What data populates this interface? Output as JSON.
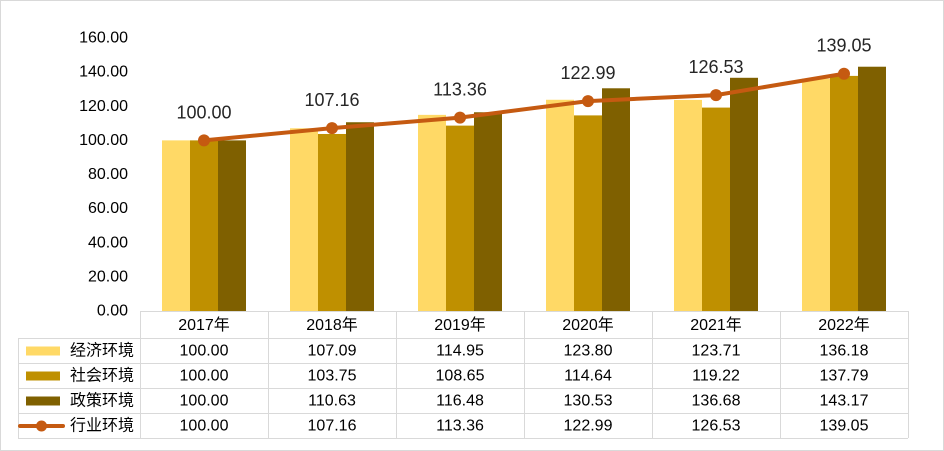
{
  "chart_data": {
    "type": "bar",
    "categories": [
      "2017年",
      "2018年",
      "2019年",
      "2020年",
      "2021年",
      "2022年"
    ],
    "series": [
      {
        "name": "经济环境",
        "type": "bar",
        "color": "#FFD966",
        "values": [
          100.0,
          107.09,
          114.95,
          123.8,
          123.71,
          136.18
        ]
      },
      {
        "name": "社会环境",
        "type": "bar",
        "color": "#BF9000",
        "values": [
          100.0,
          103.75,
          108.65,
          114.64,
          119.22,
          137.79
        ]
      },
      {
        "name": "政策环境",
        "type": "bar",
        "color": "#7F6000",
        "values": [
          100.0,
          110.63,
          116.48,
          130.53,
          136.68,
          143.17
        ]
      },
      {
        "name": "行业环境",
        "type": "line",
        "color": "#C55A11",
        "marker": "circle",
        "data_labels": true,
        "values": [
          100.0,
          107.16,
          113.36,
          122.99,
          126.53,
          139.05
        ]
      }
    ],
    "ylim": [
      0,
      160
    ],
    "yticks": [
      0,
      20,
      40,
      60,
      80,
      100,
      120,
      140,
      160
    ],
    "grid": false,
    "legend": "data-table",
    "data_table": true
  }
}
